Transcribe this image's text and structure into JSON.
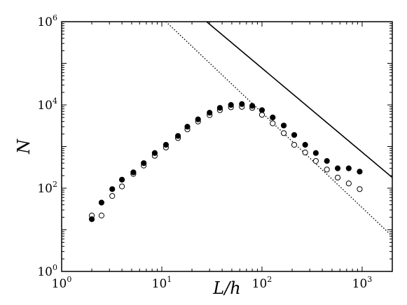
{
  "chart_data": {
    "type": "scatter",
    "title": "",
    "xlabel": "L/h",
    "ylabel": "N",
    "xscale": "log",
    "yscale": "log",
    "xlim": [
      1,
      2000
    ],
    "ylim": [
      1,
      1000000
    ],
    "x_ticks": [
      {
        "value": 1,
        "base": "10",
        "exp": "0"
      },
      {
        "value": 10,
        "base": "10",
        "exp": "1"
      },
      {
        "value": 100,
        "base": "10",
        "exp": "2"
      },
      {
        "value": 1000,
        "base": "10",
        "exp": "3"
      }
    ],
    "y_ticks": [
      {
        "value": 1,
        "base": "10",
        "exp": "0"
      },
      {
        "value": 100,
        "base": "10",
        "exp": "2"
      },
      {
        "value": 10000,
        "base": "10",
        "exp": "4"
      },
      {
        "value": 1000000,
        "base": "10",
        "exp": "6"
      }
    ],
    "grid": false,
    "legend": "none",
    "series": [
      {
        "marker": "filled-circle",
        "color": "#000000",
        "x": [
          2,
          2.5,
          3.2,
          4,
          5.2,
          6.6,
          8.5,
          11,
          14.5,
          18,
          23,
          30,
          38,
          49,
          63,
          80,
          100,
          128,
          165,
          210,
          270,
          345,
          445,
          570,
          735,
          945
        ],
        "y": [
          18,
          45,
          95,
          160,
          240,
          400,
          700,
          1100,
          1800,
          3000,
          4500,
          6500,
          8500,
          10000,
          10500,
          9500,
          7500,
          5000,
          3200,
          1900,
          1100,
          700,
          450,
          300,
          300,
          250
        ]
      },
      {
        "marker": "open-circle",
        "color": "#000000",
        "x": [
          2,
          2.5,
          3.2,
          4,
          5.2,
          6.6,
          8.5,
          11,
          14.5,
          18,
          23,
          30,
          38,
          49,
          63,
          80,
          100,
          128,
          165,
          210,
          270,
          345,
          445,
          570,
          735,
          945
        ],
        "y": [
          22,
          22,
          65,
          110,
          220,
          350,
          600,
          950,
          1600,
          2600,
          4000,
          5700,
          7500,
          8800,
          9000,
          8500,
          5800,
          3600,
          2100,
          1100,
          720,
          450,
          280,
          180,
          130,
          95
        ]
      },
      {
        "marker": "none",
        "line": "solid",
        "color": "#000000",
        "x": [
          28,
          2000
        ],
        "y": [
          1000000,
          180
        ]
      },
      {
        "marker": "none",
        "line": "dotted",
        "color": "#000000",
        "x": [
          11,
          2000
        ],
        "y": [
          1000000,
          7
        ]
      }
    ]
  }
}
